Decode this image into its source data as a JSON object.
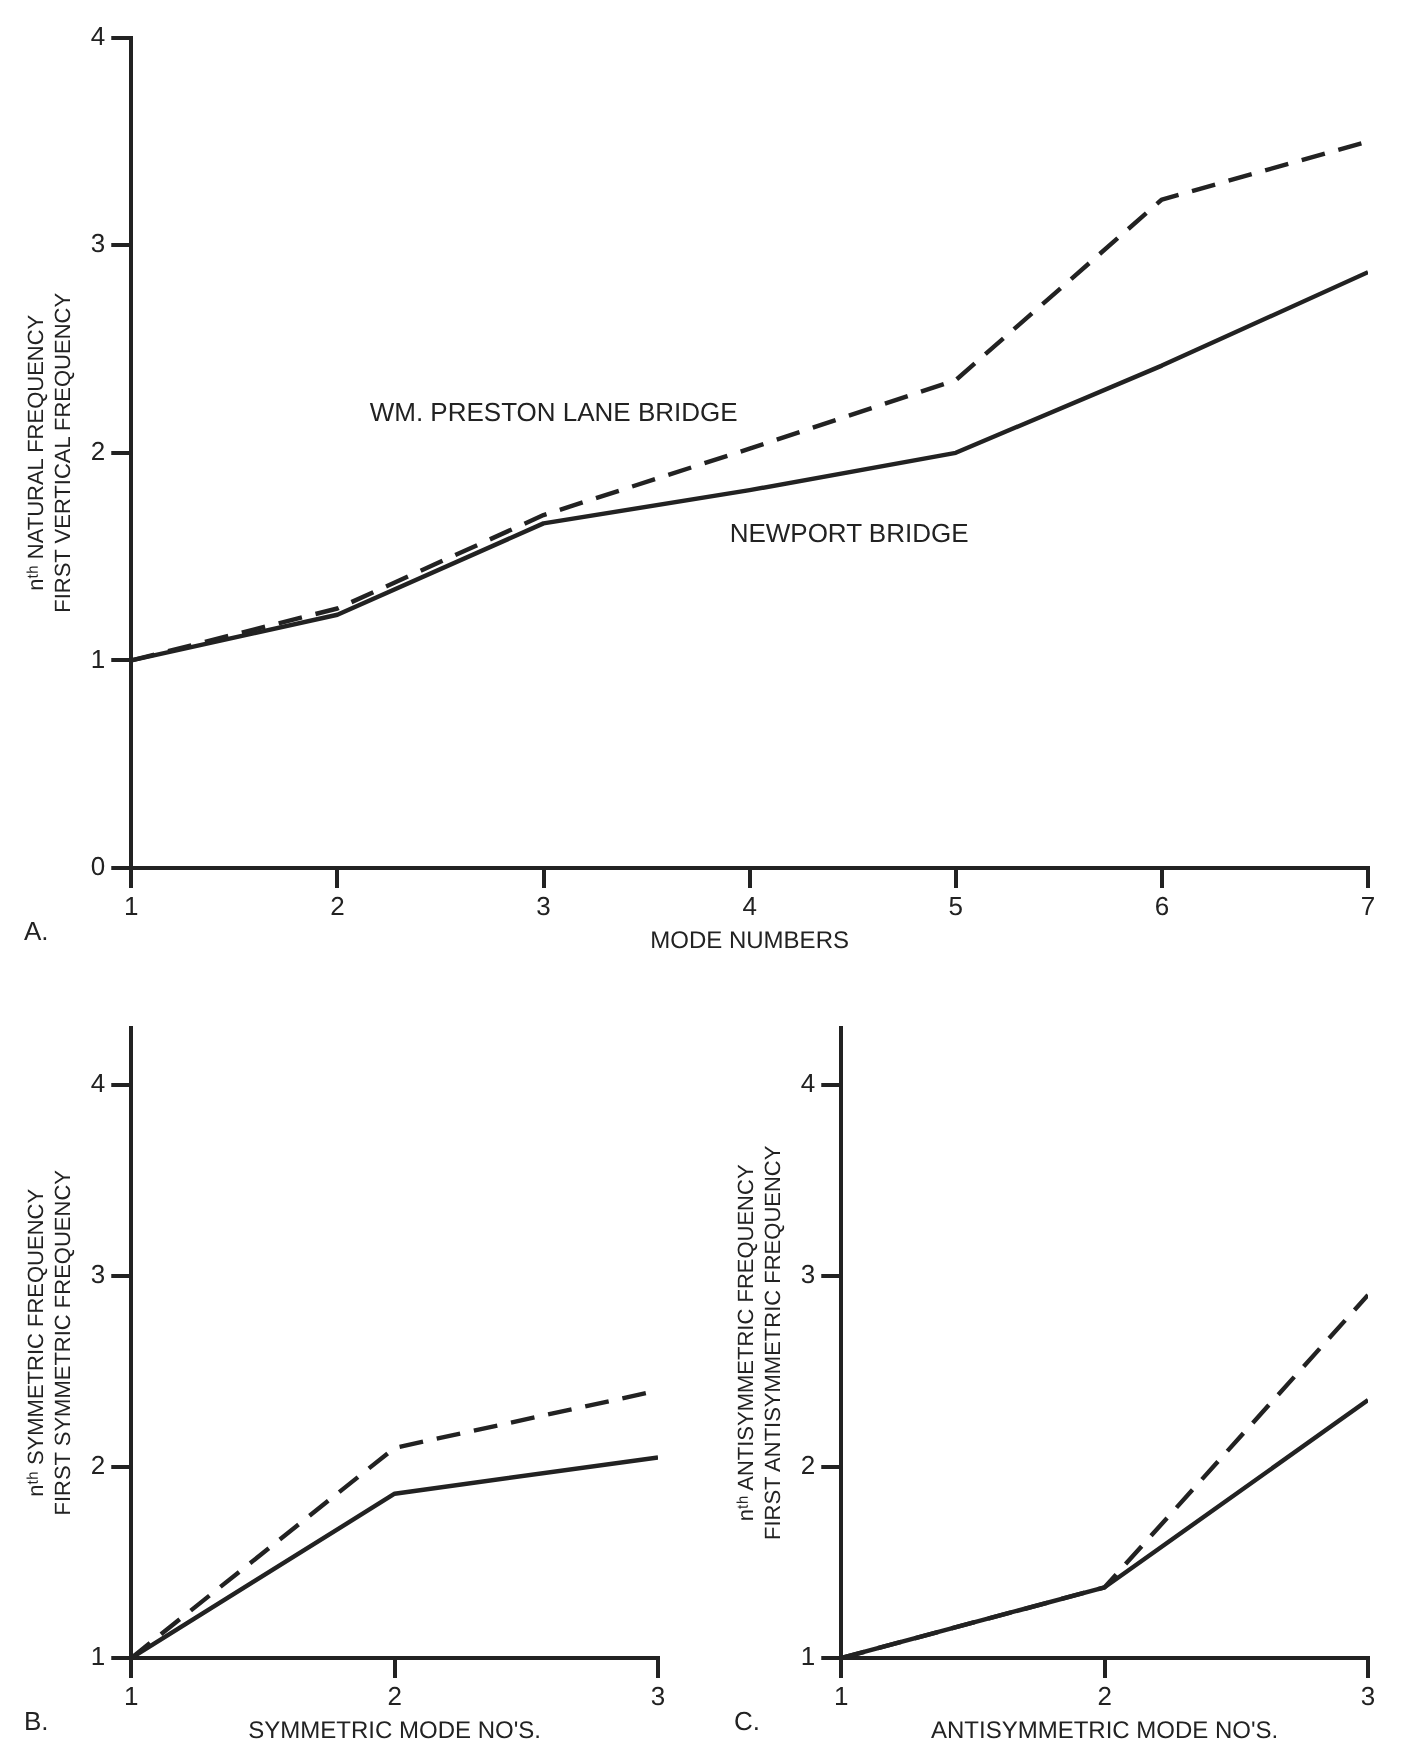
{
  "chart_data": [
    {
      "type": "line",
      "xlabel": "MODE NUMBERS",
      "ylabel": "nᵗʰ NATURAL FREQUENCY\nFIRST VERTICAL FREQUENCY",
      "x": [
        1,
        2,
        3,
        4,
        5,
        6,
        7
      ],
      "xlim": [
        1,
        7
      ],
      "xticks": [
        1,
        2,
        3,
        4,
        5,
        6,
        7
      ],
      "ylim": [
        0,
        4
      ],
      "yticks": [
        0,
        1,
        2,
        3,
        4
      ],
      "grid": false,
      "legend": false,
      "marker": "none",
      "annotations": [
        "A."
      ],
      "series": [
        {
          "name": "WM. PRESTON LANE BRIDGE",
          "color": "#222222",
          "line_style": "dashed",
          "values": [
            1.0,
            1.25,
            1.7,
            2.02,
            2.35,
            3.22,
            3.5
          ]
        },
        {
          "name": "NEWPORT BRIDGE",
          "color": "#222222",
          "line_style": "solid",
          "values": [
            1.0,
            1.22,
            1.66,
            1.82,
            2.0,
            2.42,
            2.87
          ]
        }
      ]
    },
    {
      "type": "line",
      "xlabel": "SYMMETRIC MODE NO'S.",
      "ylabel": "nᵗʰ SYMMETRIC FREQUENCY\nFIRST SYMMETRIC FREQUENCY",
      "x": [
        1,
        2,
        3
      ],
      "xlim": [
        1,
        3
      ],
      "xticks": [
        1,
        2,
        3
      ],
      "ylim": [
        1,
        4.3
      ],
      "yticks": [
        1,
        2,
        3,
        4
      ],
      "grid": false,
      "legend": false,
      "marker": "none",
      "annotations": [
        "B."
      ],
      "series": [
        {
          "color": "#222222",
          "line_style": "dashed",
          "values": [
            1.0,
            2.1,
            2.4
          ]
        },
        {
          "color": "#222222",
          "line_style": "solid",
          "values": [
            1.0,
            1.86,
            2.05
          ]
        }
      ]
    },
    {
      "type": "line",
      "xlabel": "ANTISYMMETRIC MODE NO'S.",
      "ylabel": "nᵗʰ ANTISYMMETRIC FREQUENCY\nFIRST ANTISYMMETRIC FREQUENCY",
      "x": [
        1,
        2,
        3
      ],
      "xlim": [
        1,
        3
      ],
      "xticks": [
        1,
        2,
        3
      ],
      "ylim": [
        1,
        4.3
      ],
      "yticks": [
        1,
        2,
        3,
        4
      ],
      "grid": false,
      "legend": false,
      "marker": "none",
      "annotations": [
        "C."
      ],
      "series": [
        {
          "color": "#222222",
          "line_style": "dashed",
          "values": [
            1.0,
            1.37,
            2.9
          ]
        },
        {
          "color": "#222222",
          "line_style": "solid",
          "values": [
            1.0,
            1.37,
            2.35
          ]
        }
      ]
    }
  ]
}
